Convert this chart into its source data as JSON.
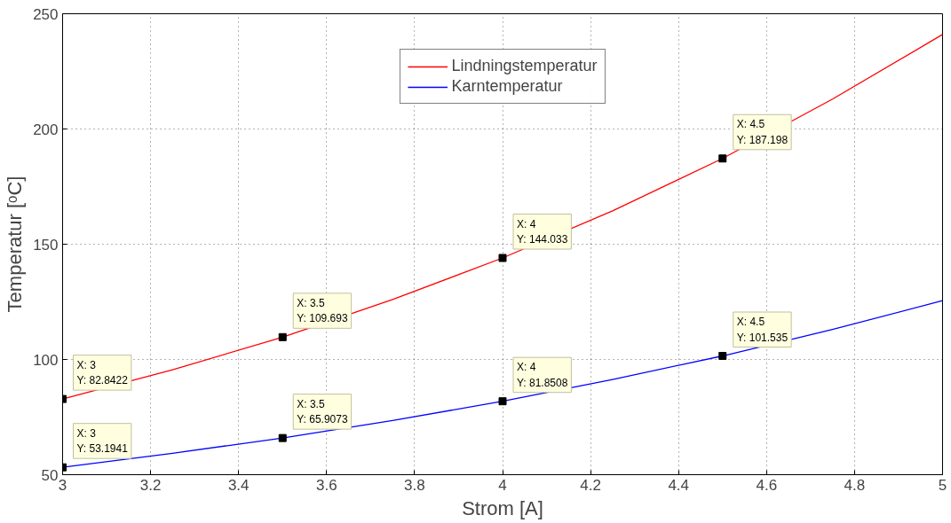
{
  "chart_data": {
    "type": "line",
    "xlabel": "Strom [A]",
    "ylabel": "Temperatur [ᵒC]",
    "x": [
      3,
      3.25,
      3.5,
      3.75,
      4,
      4.25,
      4.5,
      4.75,
      5
    ],
    "series": [
      {
        "name": "Lindningstemperatur",
        "color": "#ff0000",
        "values": [
          82.8422,
          95.5,
          109.693,
          126,
          144.033,
          164.5,
          187.198,
          213,
          241
        ]
      },
      {
        "name": "Karntemperatur",
        "color": "#0000ff",
        "values": [
          53.1941,
          59.3,
          65.9073,
          73.5,
          81.8508,
          91.3,
          101.535,
          113,
          125.5
        ]
      }
    ],
    "xlim": [
      3,
      5
    ],
    "xticks": [
      3,
      3.2,
      3.4,
      3.6,
      3.8,
      4,
      4.2,
      4.4,
      4.6,
      4.8,
      5
    ],
    "ylim": [
      50,
      250
    ],
    "yticks": [
      50,
      100,
      150,
      200,
      250
    ],
    "grid": true,
    "legend": "top",
    "line_style": "solid",
    "marker": "none",
    "annotations": [
      {
        "text": "X: 3\nY: 82.8422",
        "x": 3,
        "y": 82.8422
      },
      {
        "text": "X: 3.5\nY: 109.693",
        "x": 3.5,
        "y": 109.693
      },
      {
        "text": "X: 4\nY: 144.033",
        "x": 4,
        "y": 144.033
      },
      {
        "text": "X: 4.5\nY: 187.198",
        "x": 4.5,
        "y": 187.198
      },
      {
        "text": "X: 3\nY: 53.1941",
        "x": 3,
        "y": 53.1941
      },
      {
        "text": "X: 3.5\nY: 65.9073",
        "x": 3.5,
        "y": 65.9073
      },
      {
        "text": "X: 4\nY: 81.8508",
        "x": 4,
        "y": 81.8508
      },
      {
        "text": "X: 4.5\nY: 101.535",
        "x": 4.5,
        "y": 101.535
      }
    ]
  }
}
